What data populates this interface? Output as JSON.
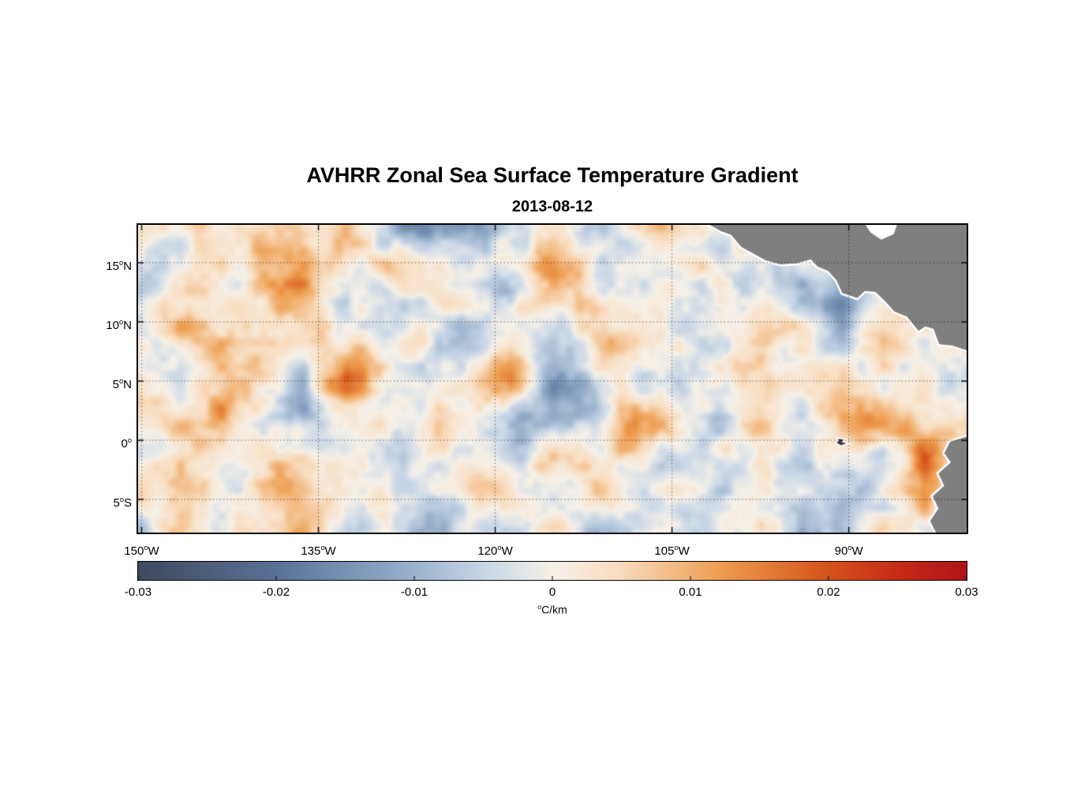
{
  "figure": {
    "title": "AVHRR Zonal Sea Surface Temperature Gradient",
    "subtitle": "2013-08-12"
  },
  "chart_data": {
    "type": "heatmap",
    "title": "AVHRR Zonal Sea Surface Temperature Gradient",
    "subtitle_date": "2013-08-12",
    "grid_on": true,
    "grid_style": "dotted",
    "lon_range": [
      -150.3,
      -80.0
    ],
    "lat_range": [
      -7.8,
      18.2
    ],
    "value_range": [
      -0.03,
      0.03
    ],
    "x_axis": {
      "ticks": [
        {
          "deg": "150",
          "hemi": "W",
          "lon": -150
        },
        {
          "deg": "135",
          "hemi": "W",
          "lon": -135
        },
        {
          "deg": "120",
          "hemi": "W",
          "lon": -120
        },
        {
          "deg": "105",
          "hemi": "W",
          "lon": -105
        },
        {
          "deg": "90",
          "hemi": "W",
          "lon": -90
        }
      ]
    },
    "y_axis": {
      "ticks": [
        {
          "deg": "15",
          "hemi": "N",
          "lat": 15
        },
        {
          "deg": "10",
          "hemi": "N",
          "lat": 10
        },
        {
          "deg": "5",
          "hemi": "N",
          "lat": 5
        },
        {
          "deg": "0",
          "hemi": "",
          "lat": 0
        },
        {
          "deg": "5",
          "hemi": "S",
          "lat": -5
        }
      ]
    },
    "colorbar": {
      "ticks": [
        {
          "value": -0.03,
          "label": "-0.03"
        },
        {
          "value": -0.02,
          "label": "-0.02"
        },
        {
          "value": -0.01,
          "label": "-0.01"
        },
        {
          "value": 0,
          "label": "0"
        },
        {
          "value": 0.01,
          "label": "0.01"
        },
        {
          "value": 0.02,
          "label": "0.02"
        },
        {
          "value": 0.03,
          "label": "0.03"
        }
      ],
      "unit_sup": "o",
      "unit_text": "C/km"
    },
    "colormap": [
      {
        "pos": 0.0,
        "color": "#3e4a5e"
      },
      {
        "pos": 0.17,
        "color": "#5a7298"
      },
      {
        "pos": 0.3,
        "color": "#8aa5c4"
      },
      {
        "pos": 0.42,
        "color": "#c9d7e6"
      },
      {
        "pos": 0.5,
        "color": "#f6f1e8"
      },
      {
        "pos": 0.58,
        "color": "#f8ddc0"
      },
      {
        "pos": 0.7,
        "color": "#ee9f52"
      },
      {
        "pos": 0.82,
        "color": "#d85a1c"
      },
      {
        "pos": 0.92,
        "color": "#c52a16"
      },
      {
        "pos": 1.0,
        "color": "#b01318"
      }
    ],
    "grid": {
      "units": "°C/km",
      "value_scale": 0.001,
      "lons": [
        -150,
        -146.5,
        -143,
        -139.5,
        -136,
        -132.5,
        -129,
        -125.5,
        -122,
        -118.5,
        -115,
        -111.5,
        -108,
        -104.5,
        -101,
        -97.5,
        -94,
        -90.5,
        -87,
        -83.5,
        -80
      ],
      "lats": [
        18,
        14.75,
        11.5,
        8.25,
        5,
        1.75,
        -1.5,
        -4.75,
        -8
      ],
      "values_x1000": [
        [
          -6,
          1,
          3,
          6,
          2,
          2,
          -3,
          -10,
          -7,
          3,
          4,
          2,
          1,
          1,
          0,
          0,
          0,
          0,
          0,
          0,
          0
        ],
        [
          2,
          -4,
          2,
          8,
          10,
          4,
          1,
          -6,
          -4,
          2,
          5,
          2,
          -2,
          2,
          1,
          0,
          0,
          0,
          0,
          0,
          0
        ],
        [
          1,
          2,
          -2,
          2,
          6,
          -2,
          -8,
          -3,
          2,
          -2,
          3,
          2,
          1,
          -2,
          2,
          3,
          -4,
          -14,
          3,
          8,
          0
        ],
        [
          0,
          2,
          3,
          1,
          2,
          4,
          -3,
          2,
          -2,
          3,
          -2,
          2,
          4,
          -2,
          2,
          2,
          -3,
          -12,
          6,
          -4,
          2
        ],
        [
          2,
          -2,
          6,
          3,
          -4,
          12,
          2,
          -2,
          4,
          8,
          -6,
          -3,
          2,
          -2,
          2,
          5,
          2,
          3,
          -4,
          2,
          -2
        ],
        [
          0,
          2,
          8,
          -6,
          -8,
          -4,
          2,
          6,
          2,
          -4,
          -14,
          -10,
          8,
          2,
          -6,
          6,
          -2,
          8,
          6,
          -2,
          4
        ],
        [
          -4,
          2,
          0,
          6,
          2,
          -6,
          -3,
          2,
          -2,
          -6,
          2,
          -4,
          2,
          -6,
          2,
          2,
          -3,
          2,
          -12,
          14,
          4
        ],
        [
          1,
          -2,
          3,
          8,
          2,
          -2,
          2,
          -4,
          2,
          -2,
          -2,
          2,
          -4,
          2,
          -2,
          2,
          2,
          -6,
          2,
          12,
          2
        ],
        [
          -2,
          2,
          -2,
          2,
          4,
          -2,
          2,
          -4,
          2,
          -2,
          1,
          -4,
          2,
          -2,
          2,
          -2,
          -8,
          -4,
          2,
          6,
          0
        ]
      ]
    },
    "land": {
      "color": "#7f7f7f",
      "central_america": [
        [
          0.69,
          0
        ],
        [
          0.703,
          0.02
        ],
        [
          0.716,
          0.033
        ],
        [
          0.728,
          0.072
        ],
        [
          0.742,
          0.092
        ],
        [
          0.757,
          0.115
        ],
        [
          0.775,
          0.128
        ],
        [
          0.795,
          0.125
        ],
        [
          0.812,
          0.112
        ],
        [
          0.82,
          0.135
        ],
        [
          0.833,
          0.15
        ],
        [
          0.843,
          0.18
        ],
        [
          0.85,
          0.222
        ],
        [
          0.868,
          0.238
        ],
        [
          0.877,
          0.215
        ],
        [
          0.89,
          0.218
        ],
        [
          0.903,
          0.252
        ],
        [
          0.913,
          0.282
        ],
        [
          0.928,
          0.298
        ],
        [
          0.942,
          0.345
        ],
        [
          0.95,
          0.33
        ],
        [
          0.96,
          0.338
        ],
        [
          0.967,
          0.388
        ],
        [
          0.983,
          0.392
        ],
        [
          1,
          0.408
        ],
        [
          1,
          0
        ]
      ],
      "caribbean_notch": [
        [
          0.878,
          0
        ],
        [
          0.916,
          0
        ],
        [
          0.912,
          0.03
        ],
        [
          0.897,
          0.048
        ],
        [
          0.884,
          0.025
        ]
      ],
      "south_america": [
        [
          1,
          0.688
        ],
        [
          0.98,
          0.705
        ],
        [
          0.973,
          0.742
        ],
        [
          0.981,
          0.772
        ],
        [
          0.966,
          0.808
        ],
        [
          0.973,
          0.848
        ],
        [
          0.959,
          0.882
        ],
        [
          0.966,
          0.922
        ],
        [
          0.956,
          0.962
        ],
        [
          0.963,
          1
        ],
        [
          1,
          1
        ]
      ],
      "galapagos": [
        [
          0.845,
          0.695
        ],
        [
          0.852,
          0.698
        ],
        [
          0.849,
          0.706
        ],
        [
          0.855,
          0.71
        ],
        [
          0.848,
          0.716
        ],
        [
          0.843,
          0.708
        ],
        [
          0.846,
          0.701
        ]
      ]
    }
  }
}
